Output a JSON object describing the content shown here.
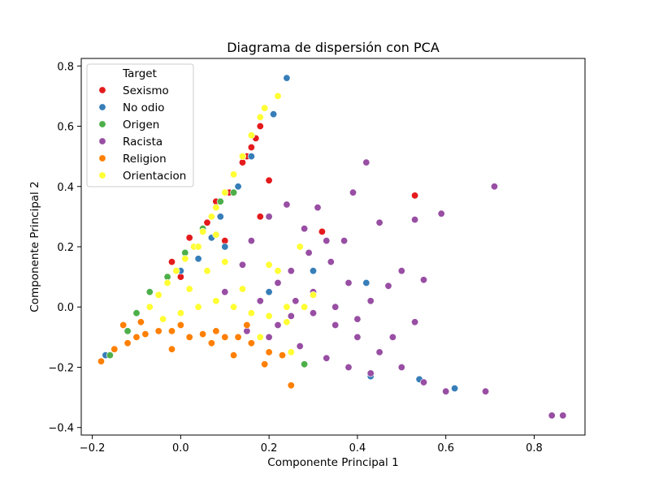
{
  "chart_data": {
    "type": "scatter",
    "title": "Diagrama de dispersión con PCA",
    "xlabel": "Componente Principal 1",
    "ylabel": "Componente Principal 2",
    "xlim": [
      -0.225,
      0.915
    ],
    "ylim": [
      -0.425,
      0.825
    ],
    "xticks": [
      -0.2,
      0.0,
      0.2,
      0.4,
      0.6,
      0.8
    ],
    "xtick_labels": [
      "−0.2",
      "0.0",
      "0.2",
      "0.4",
      "0.6",
      "0.8"
    ],
    "yticks": [
      -0.4,
      -0.2,
      0.0,
      0.2,
      0.4,
      0.6,
      0.8
    ],
    "ytick_labels": [
      "−0.4",
      "−0.2",
      "0.0",
      "0.2",
      "0.4",
      "0.6",
      "0.8"
    ],
    "grid": false,
    "legend": {
      "title": "Target",
      "placement": "top-left"
    },
    "series": [
      {
        "name": "Sexismo",
        "color": "#e41a1c",
        "points": [
          [
            0.18,
            0.6
          ],
          [
            0.17,
            0.56
          ],
          [
            0.2,
            0.42
          ],
          [
            0.12,
            0.44
          ],
          [
            0.14,
            0.48
          ],
          [
            0.08,
            0.35
          ],
          [
            0.06,
            0.28
          ],
          [
            0.02,
            0.23
          ],
          [
            -0.02,
            0.15
          ],
          [
            0.1,
            0.22
          ],
          [
            0.18,
            0.3
          ],
          [
            0.53,
            0.37
          ],
          [
            0.53,
            0.29
          ],
          [
            0.32,
            0.25
          ],
          [
            0.0,
            0.1
          ],
          [
            0.15,
            0.5
          ],
          [
            0.16,
            0.53
          ],
          [
            0.11,
            0.38
          ]
        ]
      },
      {
        "name": "No odio",
        "color": "#377eb8",
        "points": [
          [
            0.24,
            0.76
          ],
          [
            0.21,
            0.64
          ],
          [
            0.16,
            0.5
          ],
          [
            0.13,
            0.4
          ],
          [
            0.09,
            0.3
          ],
          [
            0.07,
            0.23
          ],
          [
            0.04,
            0.16
          ],
          [
            0.0,
            0.12
          ],
          [
            -0.17,
            -0.16
          ],
          [
            0.43,
            -0.23
          ],
          [
            0.54,
            -0.24
          ],
          [
            0.62,
            -0.27
          ],
          [
            0.42,
            0.08
          ],
          [
            0.3,
            0.12
          ],
          [
            0.2,
            0.05
          ],
          [
            0.1,
            0.2
          ]
        ]
      },
      {
        "name": "Origen",
        "color": "#4daf4a",
        "points": [
          [
            -0.16,
            -0.16
          ],
          [
            -0.12,
            -0.08
          ],
          [
            -0.1,
            -0.02
          ],
          [
            -0.07,
            0.05
          ],
          [
            -0.03,
            0.1
          ],
          [
            0.01,
            0.18
          ],
          [
            0.05,
            0.26
          ],
          [
            0.07,
            0.3
          ],
          [
            0.09,
            0.35
          ],
          [
            0.28,
            -0.19
          ],
          [
            0.12,
            0.38
          ]
        ]
      },
      {
        "name": "Racista",
        "color": "#984ea3",
        "points": [
          [
            0.42,
            0.48
          ],
          [
            0.71,
            0.4
          ],
          [
            0.59,
            0.31
          ],
          [
            0.53,
            0.29
          ],
          [
            0.45,
            0.28
          ],
          [
            0.37,
            0.22
          ],
          [
            0.33,
            0.22
          ],
          [
            0.29,
            0.18
          ],
          [
            0.25,
            0.12
          ],
          [
            0.22,
            0.08
          ],
          [
            0.26,
            0.02
          ],
          [
            0.3,
            -0.02
          ],
          [
            0.35,
            -0.06
          ],
          [
            0.4,
            -0.1
          ],
          [
            0.45,
            -0.15
          ],
          [
            0.5,
            -0.2
          ],
          [
            0.55,
            -0.25
          ],
          [
            0.6,
            -0.28
          ],
          [
            0.69,
            -0.28
          ],
          [
            0.84,
            -0.36
          ],
          [
            0.865,
            -0.36
          ],
          [
            0.55,
            0.09
          ],
          [
            0.5,
            0.12
          ],
          [
            0.47,
            0.07
          ],
          [
            0.43,
            0.02
          ],
          [
            0.38,
            0.08
          ],
          [
            0.34,
            0.15
          ],
          [
            0.28,
            0.26
          ],
          [
            0.24,
            0.34
          ],
          [
            0.31,
            0.33
          ],
          [
            0.39,
            0.38
          ],
          [
            0.2,
            0.3
          ],
          [
            0.16,
            0.22
          ],
          [
            0.14,
            0.14
          ],
          [
            0.18,
            0.02
          ],
          [
            0.22,
            -0.06
          ],
          [
            0.27,
            -0.13
          ],
          [
            0.33,
            -0.17
          ],
          [
            0.38,
            -0.2
          ],
          [
            0.43,
            -0.22
          ],
          [
            0.48,
            -0.1
          ],
          [
            0.53,
            -0.05
          ],
          [
            0.4,
            -0.04
          ],
          [
            0.3,
            0.05
          ],
          [
            0.35,
            0.0
          ],
          [
            0.25,
            -0.03
          ],
          [
            0.2,
            -0.1
          ],
          [
            0.15,
            -0.08
          ],
          [
            0.1,
            0.05
          ]
        ]
      },
      {
        "name": "Religion",
        "color": "#ff7f00",
        "points": [
          [
            -0.18,
            -0.18
          ],
          [
            -0.15,
            -0.14
          ],
          [
            -0.12,
            -0.12
          ],
          [
            -0.1,
            -0.1
          ],
          [
            -0.08,
            -0.09
          ],
          [
            -0.05,
            -0.08
          ],
          [
            -0.02,
            -0.08
          ],
          [
            0.02,
            -0.1
          ],
          [
            0.05,
            -0.09
          ],
          [
            0.08,
            -0.08
          ],
          [
            0.1,
            -0.1
          ],
          [
            0.13,
            -0.1
          ],
          [
            0.16,
            -0.12
          ],
          [
            0.2,
            -0.15
          ],
          [
            0.23,
            -0.16
          ],
          [
            0.25,
            -0.26
          ],
          [
            0.19,
            -0.19
          ],
          [
            0.12,
            -0.16
          ],
          [
            -0.02,
            -0.14
          ],
          [
            -0.13,
            -0.06
          ],
          [
            -0.09,
            -0.05
          ],
          [
            0.0,
            -0.06
          ],
          [
            0.07,
            -0.12
          ],
          [
            0.15,
            -0.06
          ]
        ]
      },
      {
        "name": "Orientacion",
        "color": "#ffff33",
        "points": [
          [
            0.22,
            0.7
          ],
          [
            0.19,
            0.66
          ],
          [
            0.18,
            0.63
          ],
          [
            0.16,
            0.57
          ],
          [
            0.14,
            0.5
          ],
          [
            0.12,
            0.44
          ],
          [
            0.1,
            0.38
          ],
          [
            0.08,
            0.33
          ],
          [
            0.07,
            0.3
          ],
          [
            0.05,
            0.25
          ],
          [
            0.03,
            0.2
          ],
          [
            0.01,
            0.16
          ],
          [
            -0.01,
            0.12
          ],
          [
            -0.03,
            0.08
          ],
          [
            -0.05,
            0.04
          ],
          [
            -0.07,
            0.0
          ],
          [
            -0.04,
            -0.04
          ],
          [
            0.0,
            -0.02
          ],
          [
            0.04,
            0.0
          ],
          [
            0.08,
            0.02
          ],
          [
            0.12,
            0.0
          ],
          [
            0.16,
            -0.02
          ],
          [
            0.2,
            -0.03
          ],
          [
            0.24,
            0.0
          ],
          [
            0.22,
            0.12
          ],
          [
            0.27,
            0.2
          ],
          [
            0.3,
            0.04
          ],
          [
            0.25,
            -0.15
          ],
          [
            0.18,
            -0.1
          ],
          [
            0.06,
            0.12
          ],
          [
            0.1,
            0.15
          ],
          [
            0.02,
            0.06
          ],
          [
            0.14,
            0.06
          ],
          [
            0.2,
            0.14
          ],
          [
            0.24,
            -0.05
          ],
          [
            0.28,
            0.0
          ],
          [
            0.04,
            0.2
          ],
          [
            0.08,
            0.24
          ]
        ]
      }
    ]
  }
}
